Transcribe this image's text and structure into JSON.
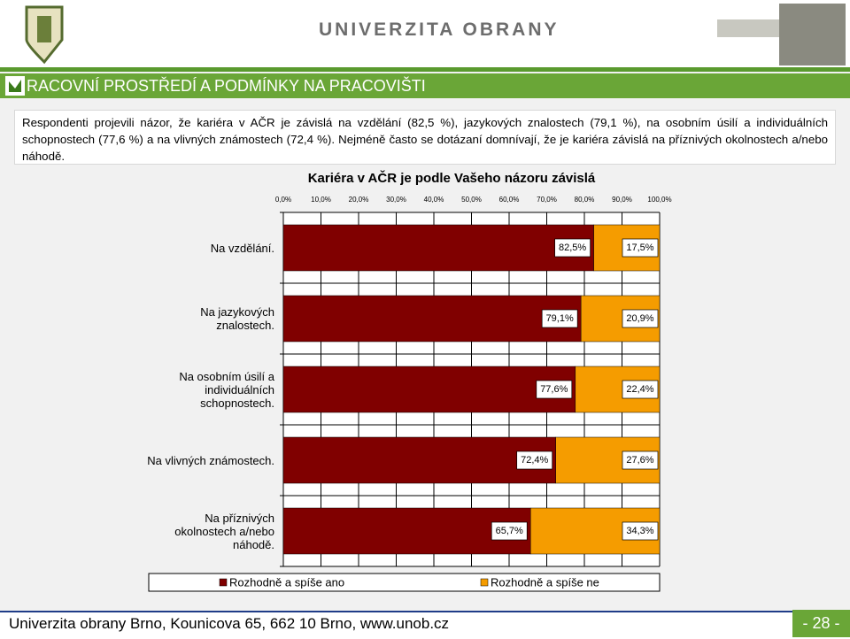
{
  "header": {
    "university": "UNIVERZITA OBRANY"
  },
  "title": "RACOVNÍ PROSTŘEDÍ A PODMÍNKY NA PRACOVIŠTI",
  "paragraph": "Respondenti projevili názor, že kariéra v AČR je závislá na vzdělání (82,5 %), jazykových znalostech (79,1 %), na osobním úsilí a individuálních schopnostech (77,6 %) a na vlivných známostech (72,4 %). Nejméně často se dotázaní domnívají, že je kariéra závislá na příznivých okolnostech a/nebo náhodě.",
  "chart_data": {
    "type": "bar",
    "orientation": "horizontal",
    "stacked": true,
    "title": "Kariéra v AČR je podle Vašeho názoru závislá",
    "categories": [
      "Na vzdělání.",
      "Na jazykových znalostech.",
      "Na osobním úsilí a individuálních schopnostech.",
      "Na vlivných známostech.",
      "Na příznivých okolnostech a/nebo náhodě."
    ],
    "series": [
      {
        "name": "Rozhodně a spíše ano",
        "color": "#800000",
        "values": [
          82.5,
          79.1,
          77.6,
          72.4,
          65.7
        ],
        "value_labels": [
          "82,5%",
          "79,1%",
          "77,6%",
          "72,4%",
          "65,7%"
        ]
      },
      {
        "name": "Rozhodně a spíše ne",
        "color": "#f59c00",
        "values": [
          17.5,
          20.9,
          22.4,
          27.6,
          34.3
        ],
        "value_labels": [
          "17,5%",
          "20,9%",
          "22,4%",
          "27,6%",
          "34,3%"
        ]
      }
    ],
    "xlim": [
      0,
      100
    ],
    "xticks": [
      {
        "value": 0,
        "label": "0,0%"
      },
      {
        "value": 10,
        "label": "10,0%"
      },
      {
        "value": 20,
        "label": "20,0%"
      },
      {
        "value": 30,
        "label": "30,0%"
      },
      {
        "value": 40,
        "label": "40,0%"
      },
      {
        "value": 50,
        "label": "50,0%"
      },
      {
        "value": 60,
        "label": "60,0%"
      },
      {
        "value": 70,
        "label": "70,0%"
      },
      {
        "value": 80,
        "label": "80,0%"
      },
      {
        "value": 90,
        "label": "90,0%"
      },
      {
        "value": 100,
        "label": "100,0%"
      }
    ],
    "grid": true,
    "legend": "bottom"
  },
  "footer": {
    "address": "Univerzita obrany Brno, Kounicova 65,  662 10  Brno, www.unob.cz",
    "page": "- 28 -"
  }
}
